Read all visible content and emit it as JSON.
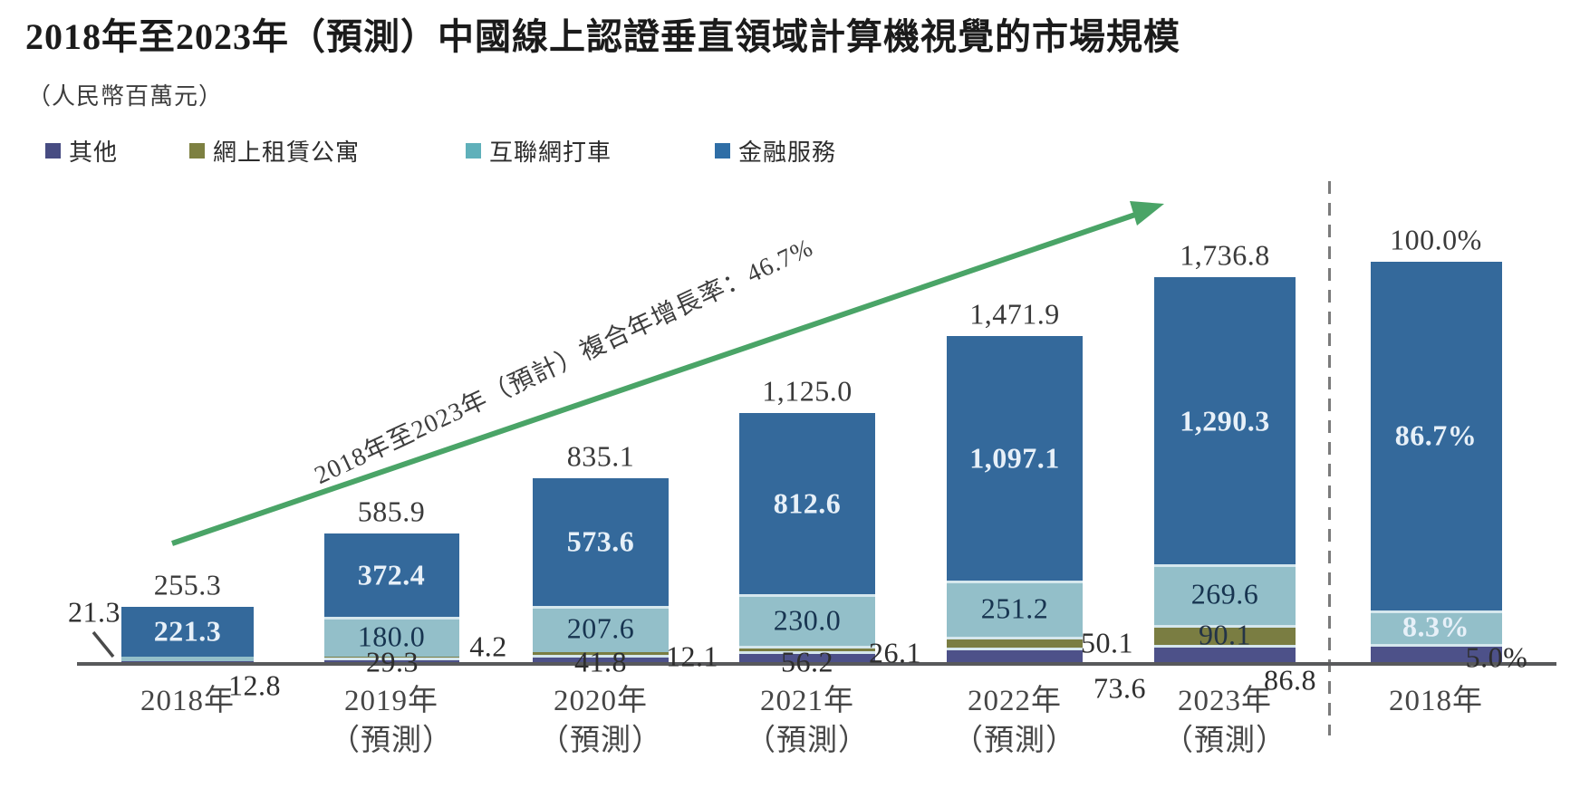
{
  "header": {
    "title": "2018年至2023年（預測）中國線上認證垂直領域計算機視覺的市場規模",
    "unit_label": "（人民幣百萬元）"
  },
  "chart_data": {
    "type": "bar",
    "subtype": "stacked-vertical",
    "title": "2018年至2023年（預測）中國線上認證垂直領域計算機視覺的市場規模",
    "ylabel": "（人民幣百萬元）",
    "grid": false,
    "y_axis_shown": false,
    "legend_position": "top-left",
    "series": [
      {
        "key": "others",
        "label": "其他",
        "color": "#4d5189",
        "legend_color": "#474c82"
      },
      {
        "key": "rental",
        "label": "網上租賃公寓",
        "color": "#7a7d42",
        "legend_color": "#7d8041"
      },
      {
        "key": "ride_hailing",
        "label": "互聯網打車",
        "color": "#93bfc9",
        "legend_color": "#5fb0ba"
      },
      {
        "key": "financial",
        "label": "金融服務",
        "color": "#34699b",
        "legend_color": "#2f6ea6"
      }
    ],
    "bars": [
      {
        "tick": [
          "2018年"
        ],
        "unit": "",
        "total": 255.3,
        "values": [
          12.8,
          null,
          21.3,
          221.3
        ]
      },
      {
        "tick": [
          "2019年",
          "（預測）"
        ],
        "unit": "",
        "total": 585.9,
        "values": [
          29.3,
          4.2,
          180.0,
          372.4
        ]
      },
      {
        "tick": [
          "2020年",
          "（預測）"
        ],
        "unit": "",
        "total": 835.1,
        "values": [
          41.8,
          12.1,
          207.6,
          573.6
        ]
      },
      {
        "tick": [
          "2021年",
          "（預測）"
        ],
        "unit": "",
        "total": 1125.0,
        "values": [
          56.2,
          26.1,
          230.0,
          812.6
        ]
      },
      {
        "tick": [
          "2022年",
          "（預測）"
        ],
        "unit": "",
        "total": 1471.9,
        "values": [
          73.6,
          50.1,
          251.2,
          1097.1
        ]
      },
      {
        "tick": [
          "2023年",
          "（預測）"
        ],
        "unit": "",
        "total": 1736.8,
        "values": [
          86.8,
          90.1,
          269.6,
          1290.3
        ]
      },
      {
        "tick": [
          "2018年"
        ],
        "unit": "%",
        "total": 100.0,
        "values": [
          5.0,
          null,
          8.3,
          86.7
        ]
      }
    ],
    "annotations": {
      "cagr_label": "2018年至2023年（預計）複合年增長率：46.7%",
      "arrow_color": "#4aa467"
    },
    "colors": {
      "axis": "#58595b",
      "dashed_separator": "#7b7b7b",
      "segment_divider": "#d5e7ed"
    }
  }
}
